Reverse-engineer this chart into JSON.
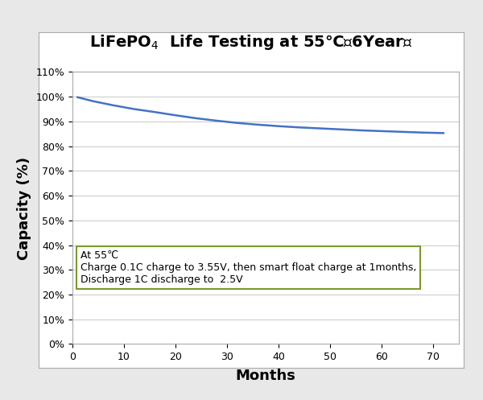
{
  "title_part1": "LiFePO",
  "title_sub": "4",
  "title_part2": "  Life Testing at 55℃（6Year）",
  "xlabel": "Months",
  "ylabel": "Capacity (%)",
  "x_data": [
    1,
    4,
    8,
    12,
    16,
    20,
    24,
    28,
    32,
    36,
    40,
    44,
    48,
    52,
    56,
    60,
    64,
    68,
    72
  ],
  "y_data": [
    99.8,
    98.2,
    96.5,
    95.0,
    93.8,
    92.5,
    91.3,
    90.3,
    89.4,
    88.7,
    88.1,
    87.6,
    87.2,
    86.8,
    86.4,
    86.1,
    85.8,
    85.5,
    85.3
  ],
  "line_color": "#4472C4",
  "line_width": 1.8,
  "xlim": [
    0,
    75
  ],
  "ylim": [
    0,
    110
  ],
  "xticks": [
    0,
    10,
    20,
    30,
    40,
    50,
    60,
    70
  ],
  "yticks": [
    0,
    10,
    20,
    30,
    40,
    50,
    60,
    70,
    80,
    90,
    100,
    110
  ],
  "ytick_labels": [
    "0%",
    "10%",
    "20%",
    "30%",
    "40%",
    "50%",
    "60%",
    "70%",
    "80%",
    "90%",
    "100%",
    "110%"
  ],
  "annotation_lines": [
    "At 55℃",
    "Charge 0.1C charge to 3.55V, then smart float charge at 1months,",
    "Discharge 1C discharge to  2.5V"
  ],
  "annotation_box_edge_color": "#7a9a2e",
  "annotation_box_face_color": "white",
  "outer_bg": "#e8e8e8",
  "inner_bg": "white",
  "grid_color": "#c8c8c8",
  "border_color": "#aaaaaa",
  "title_fontsize": 14,
  "label_fontsize": 13,
  "tick_fontsize": 9,
  "annotation_fontsize": 9,
  "outer_rect_color": "#cccccc"
}
